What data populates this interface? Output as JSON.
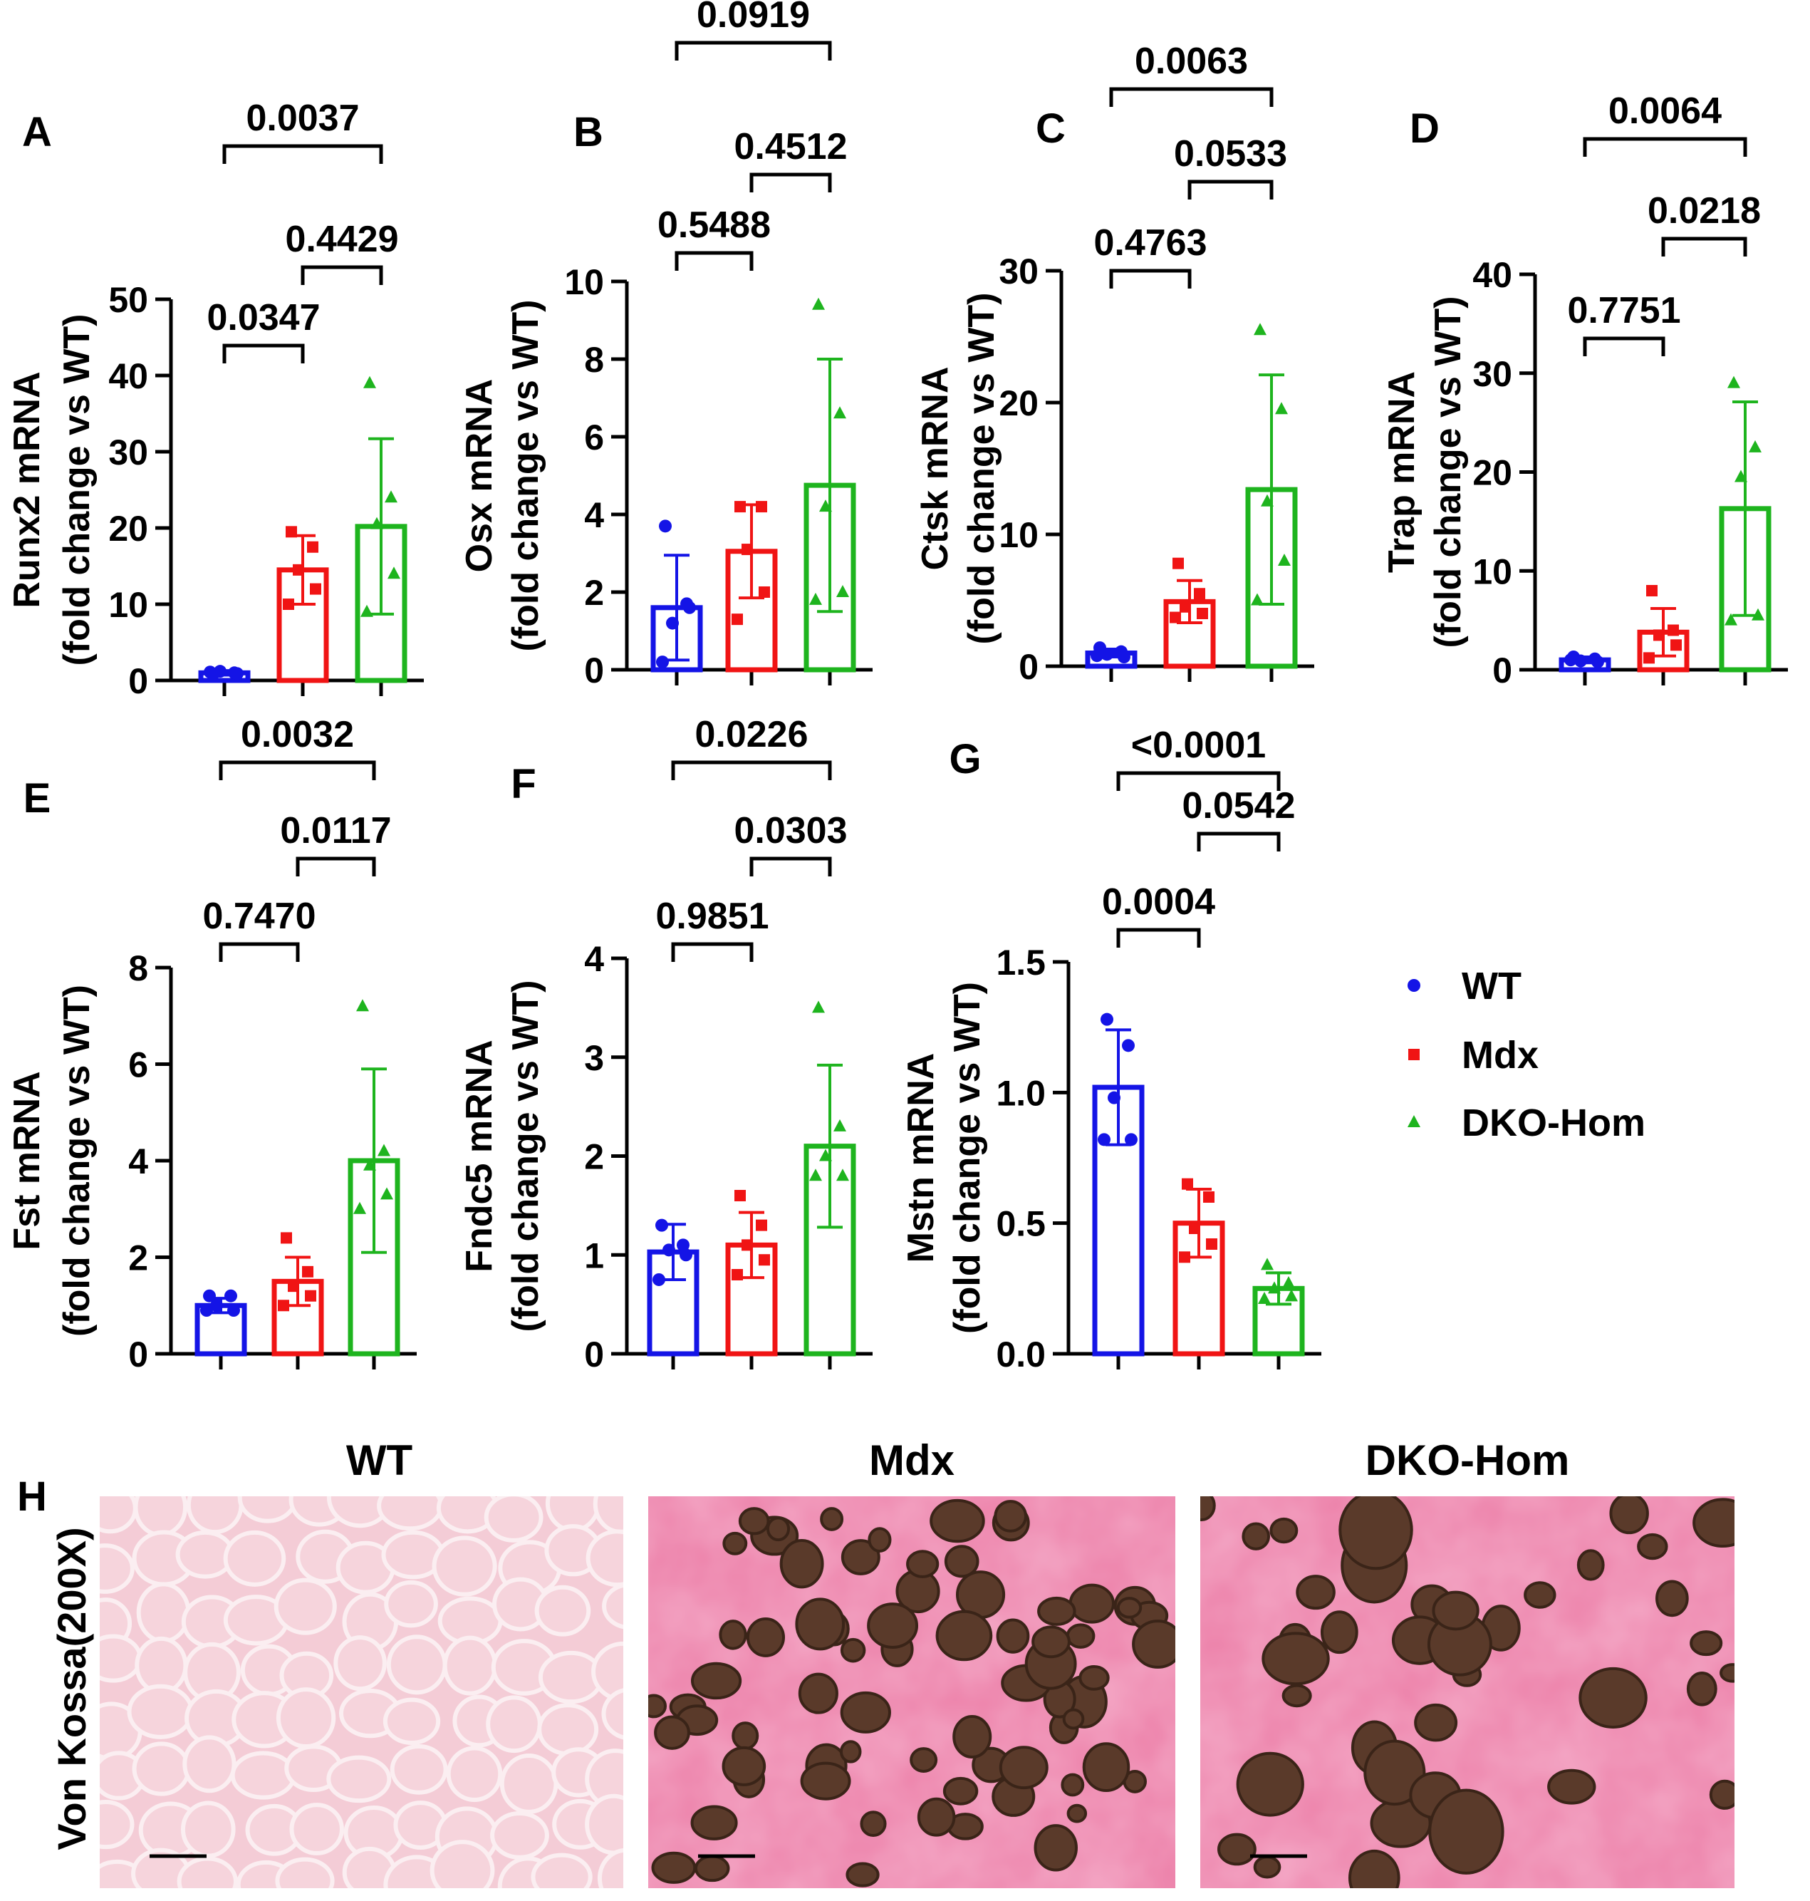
{
  "colors": {
    "WT": "#1414e6",
    "Mdx": "#f01414",
    "DKO-Hom": "#1eb41e"
  },
  "legend": [
    {
      "name": "WT",
      "marker": "circle",
      "color": "#1414e6"
    },
    {
      "name": "Mdx",
      "marker": "square",
      "color": "#f01414"
    },
    {
      "name": "DKO-Hom",
      "marker": "triangle",
      "color": "#1eb41e"
    }
  ],
  "chart_data": [
    {
      "panel": "A",
      "type": "bar",
      "ylabel": [
        "Runx2 mRNA",
        "(fold change vs  WT)"
      ],
      "ylim": [
        0,
        50
      ],
      "yticks": [
        "0",
        "10",
        "20",
        "30",
        "40",
        "50"
      ],
      "ytick_values": [
        0,
        10,
        20,
        30,
        40,
        50
      ],
      "categories": [
        "WT",
        "Mdx",
        "DKO-Hom"
      ],
      "series": [
        {
          "name": "WT",
          "mean": 1.0,
          "sd": 0.3,
          "points": [
            0.8,
            1.0,
            1.2,
            0.9,
            1.1
          ]
        },
        {
          "name": "Mdx",
          "mean": 14.5,
          "sd": 4.5,
          "points": [
            19.5,
            17.5,
            14.5,
            12.0,
            10.0
          ]
        },
        {
          "name": "DKO-Hom",
          "mean": 20.2,
          "sd": 11.5,
          "points": [
            39.0,
            24.0,
            20.5,
            14.0,
            9.0
          ]
        }
      ],
      "comparisons": [
        {
          "from": 0,
          "to": 1,
          "p": "0.0347"
        },
        {
          "from": 1,
          "to": 2,
          "p": "0.4429"
        },
        {
          "from": 0,
          "to": 2,
          "p": "0.0037"
        }
      ]
    },
    {
      "panel": "B",
      "type": "bar",
      "ylabel": [
        "Osx mRNA",
        "(fold change vs WT)"
      ],
      "ylim": [
        0,
        10
      ],
      "yticks": [
        "0",
        "2",
        "4",
        "6",
        "8",
        "10"
      ],
      "ytick_values": [
        0,
        2,
        4,
        6,
        8,
        10
      ],
      "categories": [
        "WT",
        "Mdx",
        "DKO-Hom"
      ],
      "series": [
        {
          "name": "WT",
          "mean": 1.6,
          "sd": 1.35,
          "points": [
            3.7,
            1.7,
            1.2,
            1.6,
            0.2
          ]
        },
        {
          "name": "Mdx",
          "mean": 3.05,
          "sd": 1.2,
          "points": [
            4.2,
            4.2,
            3.1,
            2.0,
            1.3
          ]
        },
        {
          "name": "DKO-Hom",
          "mean": 4.75,
          "sd": 3.25,
          "points": [
            9.4,
            6.6,
            4.2,
            2.0,
            1.8
          ]
        }
      ],
      "comparisons": [
        {
          "from": 0,
          "to": 1,
          "p": "0.5488"
        },
        {
          "from": 1,
          "to": 2,
          "p": "0.4512"
        },
        {
          "from": 0,
          "to": 2,
          "p": "0.0919"
        }
      ]
    },
    {
      "panel": "C",
      "type": "bar",
      "ylabel": [
        "Ctsk mRNA",
        "(fold change vs WT)"
      ],
      "ylim": [
        0,
        30
      ],
      "yticks": [
        "0",
        "10",
        "20",
        "30"
      ],
      "ytick_values": [
        0,
        10,
        20,
        30
      ],
      "categories": [
        "WT",
        "Mdx",
        "DKO-Hom"
      ],
      "series": [
        {
          "name": "WT",
          "mean": 1.0,
          "sd": 0.3,
          "points": [
            1.4,
            1.1,
            0.9,
            0.7,
            0.8
          ]
        },
        {
          "name": "Mdx",
          "mean": 4.9,
          "sd": 1.6,
          "points": [
            7.8,
            5.5,
            4.5,
            4.0,
            3.7
          ]
        },
        {
          "name": "DKO-Hom",
          "mean": 13.4,
          "sd": 8.7,
          "points": [
            25.5,
            19.5,
            12.5,
            8.0,
            5.0
          ]
        }
      ],
      "comparisons": [
        {
          "from": 0,
          "to": 1,
          "p": "0.4763"
        },
        {
          "from": 1,
          "to": 2,
          "p": "0.0533"
        },
        {
          "from": 0,
          "to": 2,
          "p": "0.0063"
        }
      ]
    },
    {
      "panel": "D",
      "type": "bar",
      "ylabel": [
        "Trap mRNA",
        "(fold change vs WT)"
      ],
      "ylim": [
        0,
        40
      ],
      "yticks": [
        "0",
        "10",
        "20",
        "30",
        "40"
      ],
      "ytick_values": [
        0,
        10,
        20,
        30,
        40
      ],
      "categories": [
        "WT",
        "Mdx",
        "DKO-Hom"
      ],
      "series": [
        {
          "name": "WT",
          "mean": 1.0,
          "sd": 0.3,
          "points": [
            1.3,
            1.1,
            0.9,
            0.8,
            1.0
          ]
        },
        {
          "name": "Mdx",
          "mean": 3.8,
          "sd": 2.4,
          "points": [
            8.0,
            4.0,
            3.5,
            2.5,
            1.2
          ]
        },
        {
          "name": "DKO-Hom",
          "mean": 16.3,
          "sd": 10.8,
          "points": [
            29.0,
            22.5,
            19.5,
            5.5,
            5.0
          ]
        }
      ],
      "comparisons": [
        {
          "from": 0,
          "to": 1,
          "p": "0.7751"
        },
        {
          "from": 1,
          "to": 2,
          "p": "0.0218"
        },
        {
          "from": 0,
          "to": 2,
          "p": "0.0064"
        }
      ]
    },
    {
      "panel": "E",
      "type": "bar",
      "ylabel": [
        "Fst mRNA",
        "(fold change vs WT)"
      ],
      "ylim": [
        0,
        8
      ],
      "yticks": [
        "0",
        "2",
        "4",
        "6",
        "8"
      ],
      "ytick_values": [
        0,
        2,
        4,
        6,
        8
      ],
      "categories": [
        "WT",
        "Mdx",
        "DKO-Hom"
      ],
      "series": [
        {
          "name": "WT",
          "mean": 1.0,
          "sd": 0.15,
          "points": [
            1.2,
            1.2,
            1.0,
            0.9,
            0.9
          ]
        },
        {
          "name": "Mdx",
          "mean": 1.5,
          "sd": 0.5,
          "points": [
            2.4,
            1.7,
            1.4,
            1.2,
            1.0
          ]
        },
        {
          "name": "DKO-Hom",
          "mean": 4.0,
          "sd": 1.9,
          "points": [
            7.2,
            4.2,
            3.9,
            3.3,
            3.0
          ]
        }
      ],
      "comparisons": [
        {
          "from": 0,
          "to": 1,
          "p": "0.7470"
        },
        {
          "from": 1,
          "to": 2,
          "p": "0.0117"
        },
        {
          "from": 0,
          "to": 2,
          "p": "0.0032"
        }
      ]
    },
    {
      "panel": "F",
      "type": "bar",
      "ylabel": [
        "Fndc5 mRNA",
        "(fold change vs WT)"
      ],
      "ylim": [
        0,
        4
      ],
      "yticks": [
        "0",
        "1",
        "2",
        "3",
        "4"
      ],
      "ytick_values": [
        0,
        1,
        2,
        3,
        4
      ],
      "categories": [
        "WT",
        "Mdx",
        "DKO-Hom"
      ],
      "series": [
        {
          "name": "WT",
          "mean": 1.03,
          "sd": 0.28,
          "points": [
            1.3,
            1.1,
            1.05,
            1.0,
            0.75
          ]
        },
        {
          "name": "Mdx",
          "mean": 1.1,
          "sd": 0.33,
          "points": [
            1.6,
            1.3,
            1.1,
            0.95,
            0.8
          ]
        },
        {
          "name": "DKO-Hom",
          "mean": 2.1,
          "sd": 0.82,
          "points": [
            3.5,
            2.3,
            2.0,
            1.8,
            1.8
          ]
        }
      ],
      "comparisons": [
        {
          "from": 0,
          "to": 1,
          "p": "0.9851"
        },
        {
          "from": 1,
          "to": 2,
          "p": "0.0303"
        },
        {
          "from": 0,
          "to": 2,
          "p": "0.0226"
        }
      ]
    },
    {
      "panel": "G",
      "type": "bar",
      "ylabel": [
        "Mstn mRNA",
        "(fold change vs WT)"
      ],
      "ylim": [
        0,
        1.5
      ],
      "yticks": [
        "0.0",
        "0.5",
        "1.0",
        "1.5"
      ],
      "ytick_values": [
        0,
        0.5,
        1.0,
        1.5
      ],
      "categories": [
        "WT",
        "Mdx",
        "DKO-Hom"
      ],
      "series": [
        {
          "name": "WT",
          "mean": 1.02,
          "sd": 0.22,
          "points": [
            1.28,
            1.18,
            0.98,
            0.82,
            0.82
          ]
        },
        {
          "name": "Mdx",
          "mean": 0.5,
          "sd": 0.13,
          "points": [
            0.65,
            0.6,
            0.48,
            0.42,
            0.37
          ]
        },
        {
          "name": "DKO-Hom",
          "mean": 0.25,
          "sd": 0.06,
          "points": [
            0.34,
            0.27,
            0.25,
            0.22,
            0.21
          ]
        }
      ],
      "comparisons": [
        {
          "from": 0,
          "to": 1,
          "p": "0.0004"
        },
        {
          "from": 1,
          "to": 2,
          "p": "0.0542"
        },
        {
          "from": 0,
          "to": 2,
          "p": "<0.0001"
        }
      ]
    }
  ],
  "histology": {
    "panel_letter": "H",
    "stain_label": "Von Kossa(200X)",
    "panels": [
      {
        "title": "WT",
        "stain": "none"
      },
      {
        "title": "Mdx",
        "stain": "heavy"
      },
      {
        "title": "DKO-Hom",
        "stain": "large"
      }
    ]
  }
}
